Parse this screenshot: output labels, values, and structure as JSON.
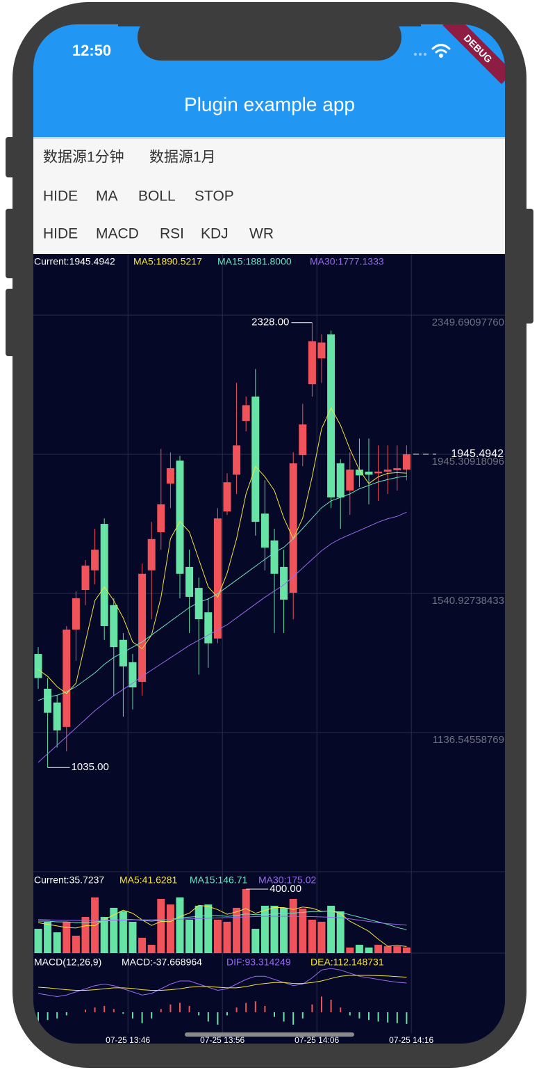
{
  "status_bar": {
    "time": "12:50"
  },
  "debug_banner": "DEBUG",
  "app_bar": {
    "title": "Plugin example app"
  },
  "buttons": [
    [
      "数据源1分钟",
      "数据源1月"
    ],
    [
      "HIDE",
      "MA",
      "BOLL",
      "STOP"
    ],
    [
      "HIDE",
      "MACD",
      "RSI",
      "KDJ",
      "WR"
    ]
  ],
  "chart_data": [
    {
      "type": "candlestick",
      "info": [
        {
          "text": "Current:1945.4942",
          "color": "#ffffff"
        },
        {
          "text": "MA5:1890.5217",
          "color": "#f6e33c"
        },
        {
          "text": "MA15:1881.8000",
          "color": "#6fe3c1"
        },
        {
          "text": "MA30:1777.1333",
          "color": "#9a6cf2"
        }
      ],
      "up_color": "#f0545a",
      "down_color": "#66e3a5",
      "open": [
        1365,
        1264,
        1224,
        1153,
        1436,
        1551,
        1608,
        1743,
        1507,
        1406,
        1341,
        1284,
        1608,
        1719,
        1860,
        1927,
        1618,
        1557,
        1486,
        1410,
        1779,
        1886,
        2042,
        2113,
        1773,
        1695,
        1618,
        1543,
        1943,
        2149,
        2224,
        2294,
        1919,
        1840,
        1901,
        1895,
        1890,
        1895,
        1899,
        1901
      ],
      "high": [
        1385,
        1295,
        1244,
        1446,
        1547,
        1638,
        1729,
        1759,
        1527,
        1426,
        1365,
        1628,
        1749,
        1961,
        1951,
        1941,
        1668,
        1587,
        1527,
        1789,
        1890,
        2153,
        2113,
        2193,
        1870,
        1729,
        1668,
        1951,
        2092,
        2328,
        2294,
        2305,
        1931,
        1951,
        1991,
        1991,
        1971,
        1971,
        1971,
        1971
      ],
      "low": [
        1264,
        1035,
        1093,
        1082,
        1345,
        1507,
        1567,
        1406,
        1244,
        1183,
        1204,
        1244,
        1466,
        1668,
        1789,
        1527,
        1426,
        1305,
        1325,
        1396,
        1769,
        1830,
        2012,
        1709,
        1608,
        1426,
        1426,
        1466,
        1911,
        2113,
        2153,
        1789,
        1729,
        1769,
        1850,
        1800,
        1810,
        1830,
        1840,
        1870
      ],
      "close": [
        1295,
        1194,
        1143,
        1436,
        1527,
        1622,
        1668,
        1446,
        1385,
        1329,
        1268,
        1598,
        1699,
        1800,
        1905,
        1598,
        1531,
        1466,
        1396,
        1759,
        1864,
        1971,
        2088,
        1749,
        1674,
        1598,
        1523,
        1919,
        2032,
        2274,
        2270,
        1820,
        1820,
        1901,
        1884,
        1886,
        1895,
        1901,
        1905,
        1945.4942
      ],
      "series": [
        {
          "name": "MA5",
          "color": "#f6e33c",
          "values": [
            1320,
            1300,
            1270,
            1250,
            1280,
            1400,
            1520,
            1560,
            1520,
            1470,
            1400,
            1380,
            1420,
            1530,
            1700,
            1750,
            1720,
            1640,
            1560,
            1530,
            1600,
            1700,
            1830,
            1910,
            1880,
            1840,
            1760,
            1700,
            1760,
            1880,
            2020,
            2080,
            2030,
            1960,
            1900,
            1860,
            1880,
            1890,
            1892,
            1890.5217
          ]
        },
        {
          "name": "MA15",
          "color": "#6fe3c1",
          "values": [
            1230,
            1240,
            1245,
            1255,
            1270,
            1290,
            1310,
            1335,
            1355,
            1370,
            1385,
            1400,
            1420,
            1440,
            1460,
            1480,
            1500,
            1515,
            1525,
            1540,
            1560,
            1580,
            1600,
            1620,
            1640,
            1660,
            1675,
            1700,
            1730,
            1760,
            1790,
            1810,
            1820,
            1830,
            1845,
            1855,
            1865,
            1872,
            1878,
            1881.8
          ]
        },
        {
          "name": "MA30",
          "color": "#9a6cf2",
          "values": [
            1050,
            1075,
            1100,
            1125,
            1150,
            1175,
            1200,
            1222,
            1244,
            1262,
            1280,
            1300,
            1318,
            1336,
            1354,
            1372,
            1390,
            1405,
            1420,
            1435,
            1450,
            1470,
            1490,
            1510,
            1530,
            1548,
            1566,
            1590,
            1615,
            1640,
            1665,
            1685,
            1700,
            1712,
            1724,
            1736,
            1748,
            1758,
            1765,
            1777.1333
          ]
        }
      ],
      "ylim": [
        732.2,
        2527.6
      ],
      "yticks": [
        {
          "value": 2349.6909776,
          "label": "2349.69097760"
        },
        1945.30918096,
        1540.92738433,
        1136.54558769
      ],
      "xticks": [
        {
          "value": 9.5,
          "label": "07-25 13:46"
        },
        {
          "value": 19.5,
          "label": "07-25 13:56"
        },
        {
          "value": 29.5,
          "label": "07-25 14:06"
        },
        {
          "value": 39.5,
          "label": "07-25 14:16"
        }
      ],
      "max_label": "2328.00",
      "min_label": "1035.00",
      "current_label": "1945.4942"
    },
    {
      "type": "bar",
      "info": [
        {
          "text": "Current:35.7237",
          "color": "#ffffff"
        },
        {
          "text": "MA5:41.6281",
          "color": "#f6e33c"
        },
        {
          "text": "MA15:146.71",
          "color": "#6fe3c1"
        },
        {
          "text": "MA30:175.02",
          "color": "#9a6cf2"
        }
      ],
      "values": [
        152,
        196,
        130,
        196,
        109,
        226,
        348,
        226,
        283,
        261,
        196,
        96,
        52,
        339,
        304,
        348,
        209,
        296,
        304,
        209,
        196,
        283,
        400,
        152,
        296,
        296,
        283,
        339,
        278,
        209,
        196,
        296,
        261,
        35,
        52,
        35,
        52,
        43,
        43,
        35.7237
      ],
      "series": [
        {
          "name": "MA5",
          "color": "#f6e33c",
          "values": [
            190,
            180,
            170,
            160,
            157,
            171,
            172,
            210,
            238,
            269,
            249,
            208,
            173,
            198,
            197,
            228,
            250,
            299,
            292,
            272,
            243,
            258,
            278,
            249,
            267,
            285,
            285,
            273,
            288,
            281,
            261,
            264,
            248,
            199,
            168,
            136,
            87,
            43,
            48,
            41.6281
          ]
        },
        {
          "name": "MA15",
          "color": "#6fe3c1",
          "values": [
            200,
            200,
            195,
            195,
            190,
            190,
            195,
            200,
            205,
            210,
            210,
            205,
            200,
            205,
            210,
            220,
            225,
            230,
            235,
            235,
            230,
            235,
            245,
            240,
            240,
            245,
            250,
            250,
            255,
            260,
            260,
            265,
            255,
            240,
            225,
            210,
            195,
            180,
            160,
            146.71
          ]
        },
        {
          "name": "MA30",
          "color": "#9a6cf2",
          "values": [
            210,
            208,
            206,
            205,
            205,
            204,
            204,
            205,
            206,
            207,
            208,
            208,
            208,
            209,
            210,
            212,
            214,
            216,
            218,
            220,
            222,
            224,
            226,
            228,
            230,
            230,
            230,
            230,
            229,
            228,
            226,
            224,
            220,
            214,
            206,
            198,
            190,
            184,
            180,
            175.02
          ]
        }
      ],
      "ylim": [
        0,
        508.7
      ],
      "max_label": "400.00"
    },
    {
      "type": "macd",
      "info": [
        {
          "text": "MACD(12,26,9)",
          "color": "#ffffff"
        },
        {
          "text": "MACD:-37.668964",
          "color": "#ffffff"
        },
        {
          "text": "DIF:93.314249",
          "color": "#9a6cf2"
        },
        {
          "text": "DEA:112.148731",
          "color": "#f6e33c"
        }
      ],
      "values": [
        -30,
        -25,
        -20,
        -10,
        0,
        8,
        15,
        20,
        10,
        -5,
        -20,
        -35,
        -20,
        10,
        25,
        30,
        20,
        -10,
        -30,
        -40,
        -10,
        15,
        30,
        35,
        20,
        -15,
        -30,
        -40,
        -20,
        25,
        50,
        40,
        15,
        -10,
        -20,
        -25,
        -30,
        -33,
        -35,
        -37.668964
      ],
      "series": [
        {
          "name": "DIF",
          "color": "#9a6cf2",
          "values": [
            60,
            55,
            50,
            55,
            65,
            75,
            85,
            90,
            85,
            75,
            65,
            55,
            60,
            75,
            90,
            100,
            100,
            90,
            80,
            70,
            75,
            90,
            105,
            115,
            115,
            105,
            95,
            85,
            90,
            110,
            135,
            140,
            135,
            125,
            115,
            110,
            105,
            100,
            96,
            93.314249
          ]
        },
        {
          "name": "DEA",
          "color": "#f6e33c",
          "values": [
            80,
            78,
            75,
            72,
            70,
            70,
            72,
            75,
            78,
            78,
            76,
            72,
            70,
            70,
            72,
            75,
            80,
            82,
            82,
            80,
            78,
            78,
            82,
            88,
            92,
            95,
            95,
            92,
            92,
            95,
            100,
            108,
            115,
            118,
            118,
            118,
            117,
            116,
            114,
            112.148731
          ]
        }
      ],
      "ylim": [
        -67,
        178
      ]
    }
  ]
}
